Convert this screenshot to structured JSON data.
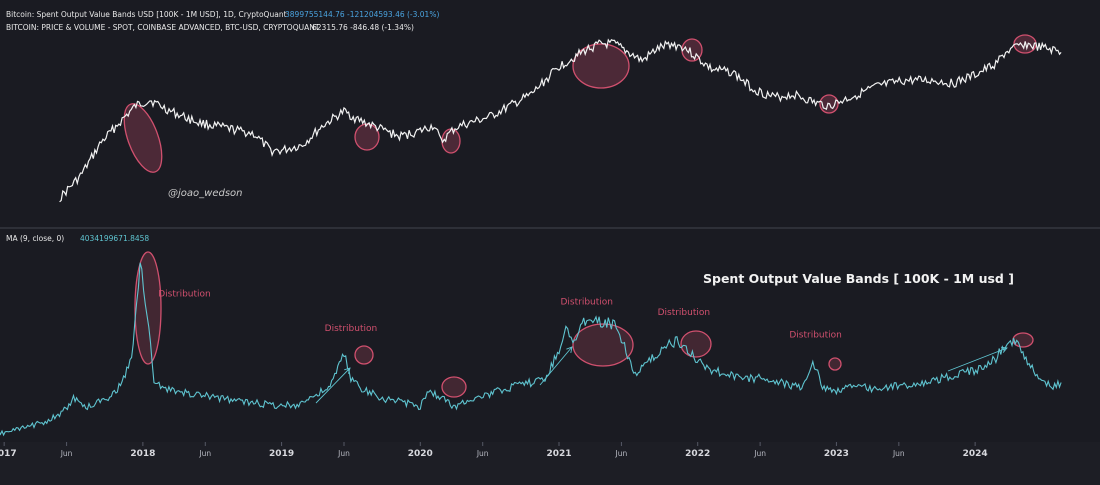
{
  "colors": {
    "background": "#1a1b22",
    "price_line": "#f2f2f2",
    "ma_line": "#5fc4d0",
    "highlight": "#d0506e",
    "legend_value": "#4aa3df",
    "divider": "#3a3c46",
    "text": "#e8e8e8",
    "axis_text": "#b7b9c2"
  },
  "legend": {
    "line1_title": "Bitcoin: Spent Output Value Bands USD [100K - 1M USD], 1D, CryptoQuant",
    "line1_value": "3899755144.76  -121204593.46 (-3.01%)",
    "line2_title": "BITCOIN: PRICE & VOLUME - SPOT, COINBASE ADVANCED, BTC-USD, CRYPTOQUANT",
    "line2_value": "62315.76  -846.48 (-1.34%)",
    "ma_title": "MA (9, close, 0)",
    "ma_value": "4034199671.8458"
  },
  "watermark": "@joao_wedson",
  "annotation_title": "Spent Output Value Bands [ 100K - 1M usd ]",
  "chart_data": [
    {
      "type": "line",
      "series": [
        {
          "name": "BITCOIN: PRICE & VOLUME - SPOT, COINBASE ADVANCED, BTC-USD, CRYPTOQUANT",
          "x": [
            2017.4,
            2017.55,
            2017.7,
            2017.85,
            2017.95,
            2018.05,
            2018.2,
            2018.4,
            2018.6,
            2018.8,
            2018.92,
            2019.0,
            2019.15,
            2019.3,
            2019.45,
            2019.55,
            2019.7,
            2019.85,
            2020.0,
            2020.1,
            2020.15,
            2020.25,
            2020.3,
            2020.5,
            2020.65,
            2020.8,
            2020.9,
            2021.0,
            2021.1,
            2021.2,
            2021.3,
            2021.4,
            2021.5,
            2021.6,
            2021.7,
            2021.8,
            2021.9,
            2022.0,
            2022.1,
            2022.25,
            2022.4,
            2022.55,
            2022.7,
            2022.85,
            2022.95,
            2023.1,
            2023.3,
            2023.5,
            2023.7,
            2023.85,
            2024.0,
            2024.15,
            2024.22,
            2024.35,
            2024.45,
            2024.55,
            2024.62
          ],
          "y": [
            8.2,
            8.6,
            9.2,
            9.6,
            9.85,
            9.95,
            9.75,
            9.55,
            9.45,
            9.35,
            9.05,
            9.05,
            9.15,
            9.5,
            9.75,
            9.6,
            9.45,
            9.3,
            9.4,
            9.5,
            9.2,
            9.45,
            9.5,
            9.65,
            9.85,
            10.05,
            10.3,
            10.55,
            10.7,
            10.85,
            10.95,
            10.95,
            10.8,
            10.65,
            10.85,
            10.95,
            10.9,
            10.7,
            10.5,
            10.45,
            10.15,
            10.0,
            10.05,
            9.9,
            9.85,
            10.0,
            10.2,
            10.3,
            10.3,
            10.25,
            10.4,
            10.6,
            10.8,
            10.95,
            10.9,
            10.85,
            10.8
          ]
        }
      ]
    },
    {
      "type": "line",
      "series": [
        {
          "name": "MA (9, close, 0)",
          "x": [
            2016.95,
            2017.1,
            2017.25,
            2017.4,
            2017.5,
            2017.6,
            2017.75,
            2017.85,
            2017.93,
            2017.98,
            2018.03,
            2018.08,
            2018.2,
            2018.4,
            2018.6,
            2018.8,
            2018.95,
            2019.1,
            2019.25,
            2019.35,
            2019.45,
            2019.5,
            2019.6,
            2019.75,
            2019.9,
            2020.0,
            2020.05,
            2020.15,
            2020.25,
            2020.35,
            2020.5,
            2020.6,
            2020.75,
            2020.9,
            2021.0,
            2021.05,
            2021.1,
            2021.2,
            2021.3,
            2021.4,
            2021.45,
            2021.55,
            2021.65,
            2021.75,
            2021.85,
            2021.95,
            2022.1,
            2022.3,
            2022.5,
            2022.65,
            2022.75,
            2022.83,
            2022.9,
            2023.0,
            2023.1,
            2023.3,
            2023.5,
            2023.7,
            2023.9,
            2024.05,
            2024.15,
            2024.22,
            2024.3,
            2024.4,
            2024.48,
            2024.55,
            2024.62
          ],
          "y": [
            0.03,
            0.05,
            0.08,
            0.12,
            0.2,
            0.16,
            0.21,
            0.27,
            0.45,
            0.88,
            0.62,
            0.28,
            0.24,
            0.22,
            0.2,
            0.18,
            0.17,
            0.17,
            0.22,
            0.26,
            0.42,
            0.3,
            0.24,
            0.2,
            0.18,
            0.16,
            0.24,
            0.21,
            0.16,
            0.2,
            0.22,
            0.25,
            0.27,
            0.3,
            0.44,
            0.55,
            0.47,
            0.6,
            0.58,
            0.56,
            0.5,
            0.32,
            0.38,
            0.45,
            0.48,
            0.42,
            0.34,
            0.3,
            0.3,
            0.27,
            0.25,
            0.38,
            0.26,
            0.24,
            0.26,
            0.25,
            0.27,
            0.29,
            0.32,
            0.35,
            0.4,
            0.47,
            0.48,
            0.36,
            0.3,
            0.25,
            0.28
          ]
        }
      ]
    }
  ],
  "distribution_labels": [
    {
      "text": "Distribution",
      "x": 2018.3,
      "y": 0.7
    },
    {
      "text": "Distribution",
      "x": 2019.5,
      "y": 0.53
    },
    {
      "text": "Distribution",
      "x": 2021.2,
      "y": 0.66
    },
    {
      "text": "Distribution",
      "x": 2021.9,
      "y": 0.61
    },
    {
      "text": "Distribution",
      "x": 2022.85,
      "y": 0.5
    }
  ],
  "x_ticks": [
    {
      "label": "2017",
      "x": 2017.0
    },
    {
      "label": "Jun",
      "x": 2017.45
    },
    {
      "label": "2018",
      "x": 2018.0
    },
    {
      "label": "Jun",
      "x": 2018.45
    },
    {
      "label": "2019",
      "x": 2019.0
    },
    {
      "label": "Jun",
      "x": 2019.45
    },
    {
      "label": "2020",
      "x": 2020.0
    },
    {
      "label": "Jun",
      "x": 2020.45
    },
    {
      "label": "2021",
      "x": 2021.0
    },
    {
      "label": "Jun",
      "x": 2021.45
    },
    {
      "label": "2022",
      "x": 2022.0
    },
    {
      "label": "Jun",
      "x": 2022.45
    },
    {
      "label": "2023",
      "x": 2023.0
    },
    {
      "label": "Jun",
      "x": 2023.45
    },
    {
      "label": "2024",
      "x": 2024.0
    }
  ]
}
